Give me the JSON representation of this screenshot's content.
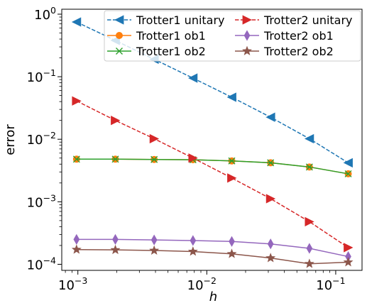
{
  "chart_data": {
    "type": "line",
    "xlabel": "h",
    "ylabel": "error",
    "xscale": "log",
    "yscale": "log",
    "xlim": [
      0.00075,
      0.16
    ],
    "ylim": [
      8e-05,
      1.2
    ],
    "x_ticks": [
      {
        "base": "10",
        "exp": "−3",
        "value": 0.001
      },
      {
        "base": "10",
        "exp": "−2",
        "value": 0.01
      },
      {
        "base": "10",
        "exp": "−1",
        "value": 0.1
      }
    ],
    "y_ticks": [
      {
        "base": "10",
        "exp": "−4",
        "value": 0.0001
      },
      {
        "base": "10",
        "exp": "−3",
        "value": 0.001
      },
      {
        "base": "10",
        "exp": "−2",
        "value": 0.01
      },
      {
        "base": "10",
        "exp": "−1",
        "value": 0.1
      },
      {
        "base": "10",
        "exp": "0",
        "value": 1
      }
    ],
    "legend_position": "top-right",
    "legend_columns": 2,
    "x": [
      0.0009765625,
      0.001953125,
      0.00390625,
      0.0078125,
      0.015625,
      0.03125,
      0.0625,
      0.125
    ],
    "series": [
      {
        "name": "Trotter1 unitary",
        "color": "#1f77b4",
        "linestyle": "dashed",
        "marker": "triangle-left",
        "values": [
          0.75,
          0.38,
          0.19,
          0.095,
          0.047,
          0.0225,
          0.0102,
          0.0042
        ]
      },
      {
        "name": "Trotter1 ob1",
        "color": "#ff7f0e",
        "linestyle": "solid",
        "marker": "circle",
        "values": [
          0.0048,
          0.0048,
          0.00475,
          0.0047,
          0.0045,
          0.0042,
          0.0036,
          0.0028
        ]
      },
      {
        "name": "Trotter1 ob2",
        "color": "#2ca02c",
        "linestyle": "solid",
        "marker": "x",
        "values": [
          0.0048,
          0.0048,
          0.00475,
          0.0047,
          0.0045,
          0.0042,
          0.0036,
          0.0028
        ]
      },
      {
        "name": "Trotter2 unitary",
        "color": "#d62728",
        "linestyle": "dashed",
        "marker": "triangle-right",
        "values": [
          0.041,
          0.02,
          0.0102,
          0.005,
          0.0024,
          0.00112,
          0.00048,
          0.000185
        ]
      },
      {
        "name": "Trotter2 ob1",
        "color": "#9467bd",
        "linestyle": "solid",
        "marker": "thin-diamond",
        "values": [
          0.00025,
          0.00025,
          0.000245,
          0.00024,
          0.000232,
          0.000212,
          0.00018,
          0.000133
        ]
      },
      {
        "name": "Trotter2 ob2",
        "color": "#8c564b",
        "linestyle": "solid",
        "marker": "star",
        "values": [
          0.000172,
          0.00017,
          0.000166,
          0.00016,
          0.000147,
          0.000126,
          0.000102,
          0.000108
        ]
      }
    ]
  }
}
